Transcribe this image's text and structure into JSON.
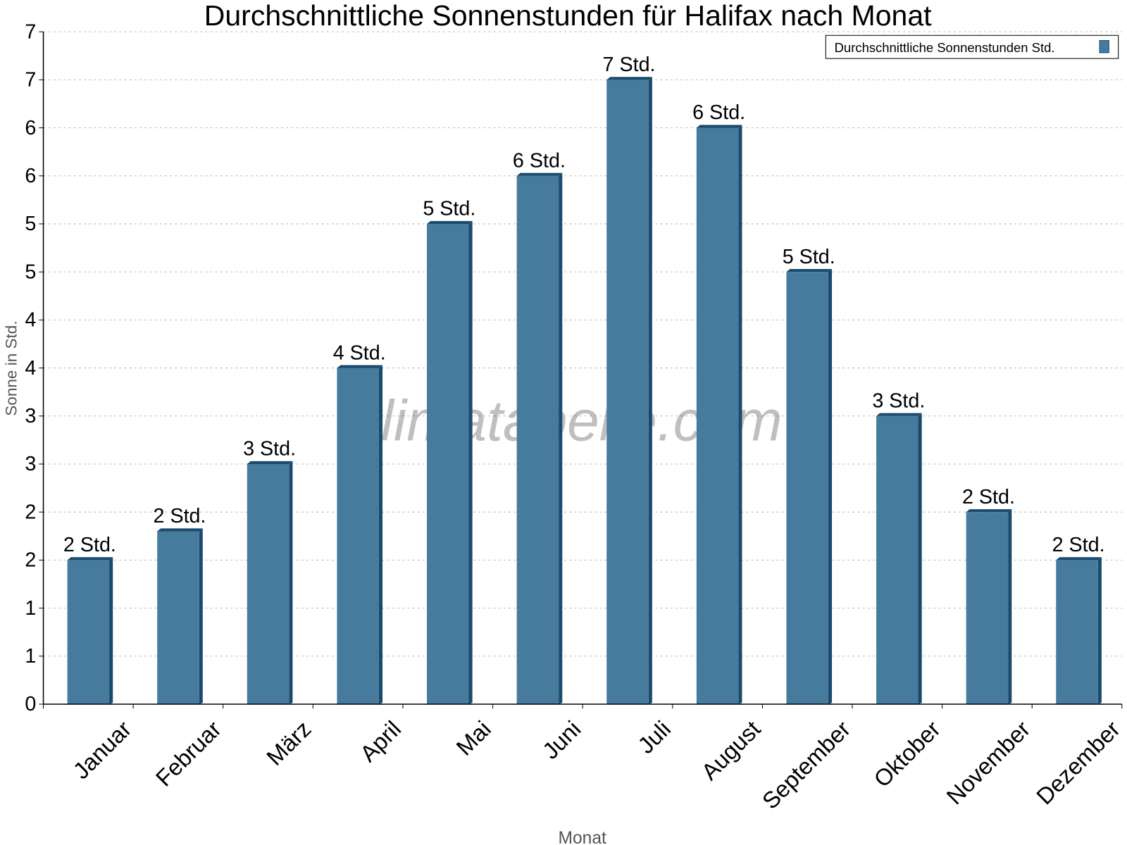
{
  "chart_data": {
    "type": "bar",
    "title": "Durchschnittliche Sonnenstunden für Halifax nach Monat",
    "xlabel": "Monat",
    "ylabel": "Sonne in Std.",
    "ylim": [
      0,
      7
    ],
    "yticks": [
      0,
      0.5,
      1,
      1.5,
      2,
      2.5,
      3,
      3.5,
      4,
      4.5,
      5,
      5.5,
      6,
      6.5,
      7
    ],
    "ytick_labels": [
      "0",
      "1",
      "1",
      "2",
      "2",
      "3",
      "3",
      "4",
      "4",
      "5",
      "5",
      "6",
      "6",
      "7",
      "7"
    ],
    "grid": true,
    "legend_position": "top-right",
    "categories": [
      "Januar",
      "Februar",
      "März",
      "April",
      "Mai",
      "Juni",
      "Juli",
      "August",
      "September",
      "Oktober",
      "November",
      "Dezember"
    ],
    "series": [
      {
        "name": "Durchschnittliche Sonnenstunden Std.",
        "values": [
          1.5,
          1.8,
          2.5,
          3.5,
          5.0,
          5.5,
          6.5,
          6.0,
          4.5,
          3.0,
          2.0,
          1.5
        ],
        "data_labels": [
          "2 Std.",
          "2 Std.",
          "3 Std.",
          "4 Std.",
          "5 Std.",
          "6 Std.",
          "7 Std.",
          "6 Std.",
          "5 Std.",
          "3 Std.",
          "2 Std.",
          "2 Std."
        ],
        "color": "#467b9d",
        "edge_color": "#1a4a6c"
      }
    ],
    "watermark": "klimatabelle.com"
  }
}
